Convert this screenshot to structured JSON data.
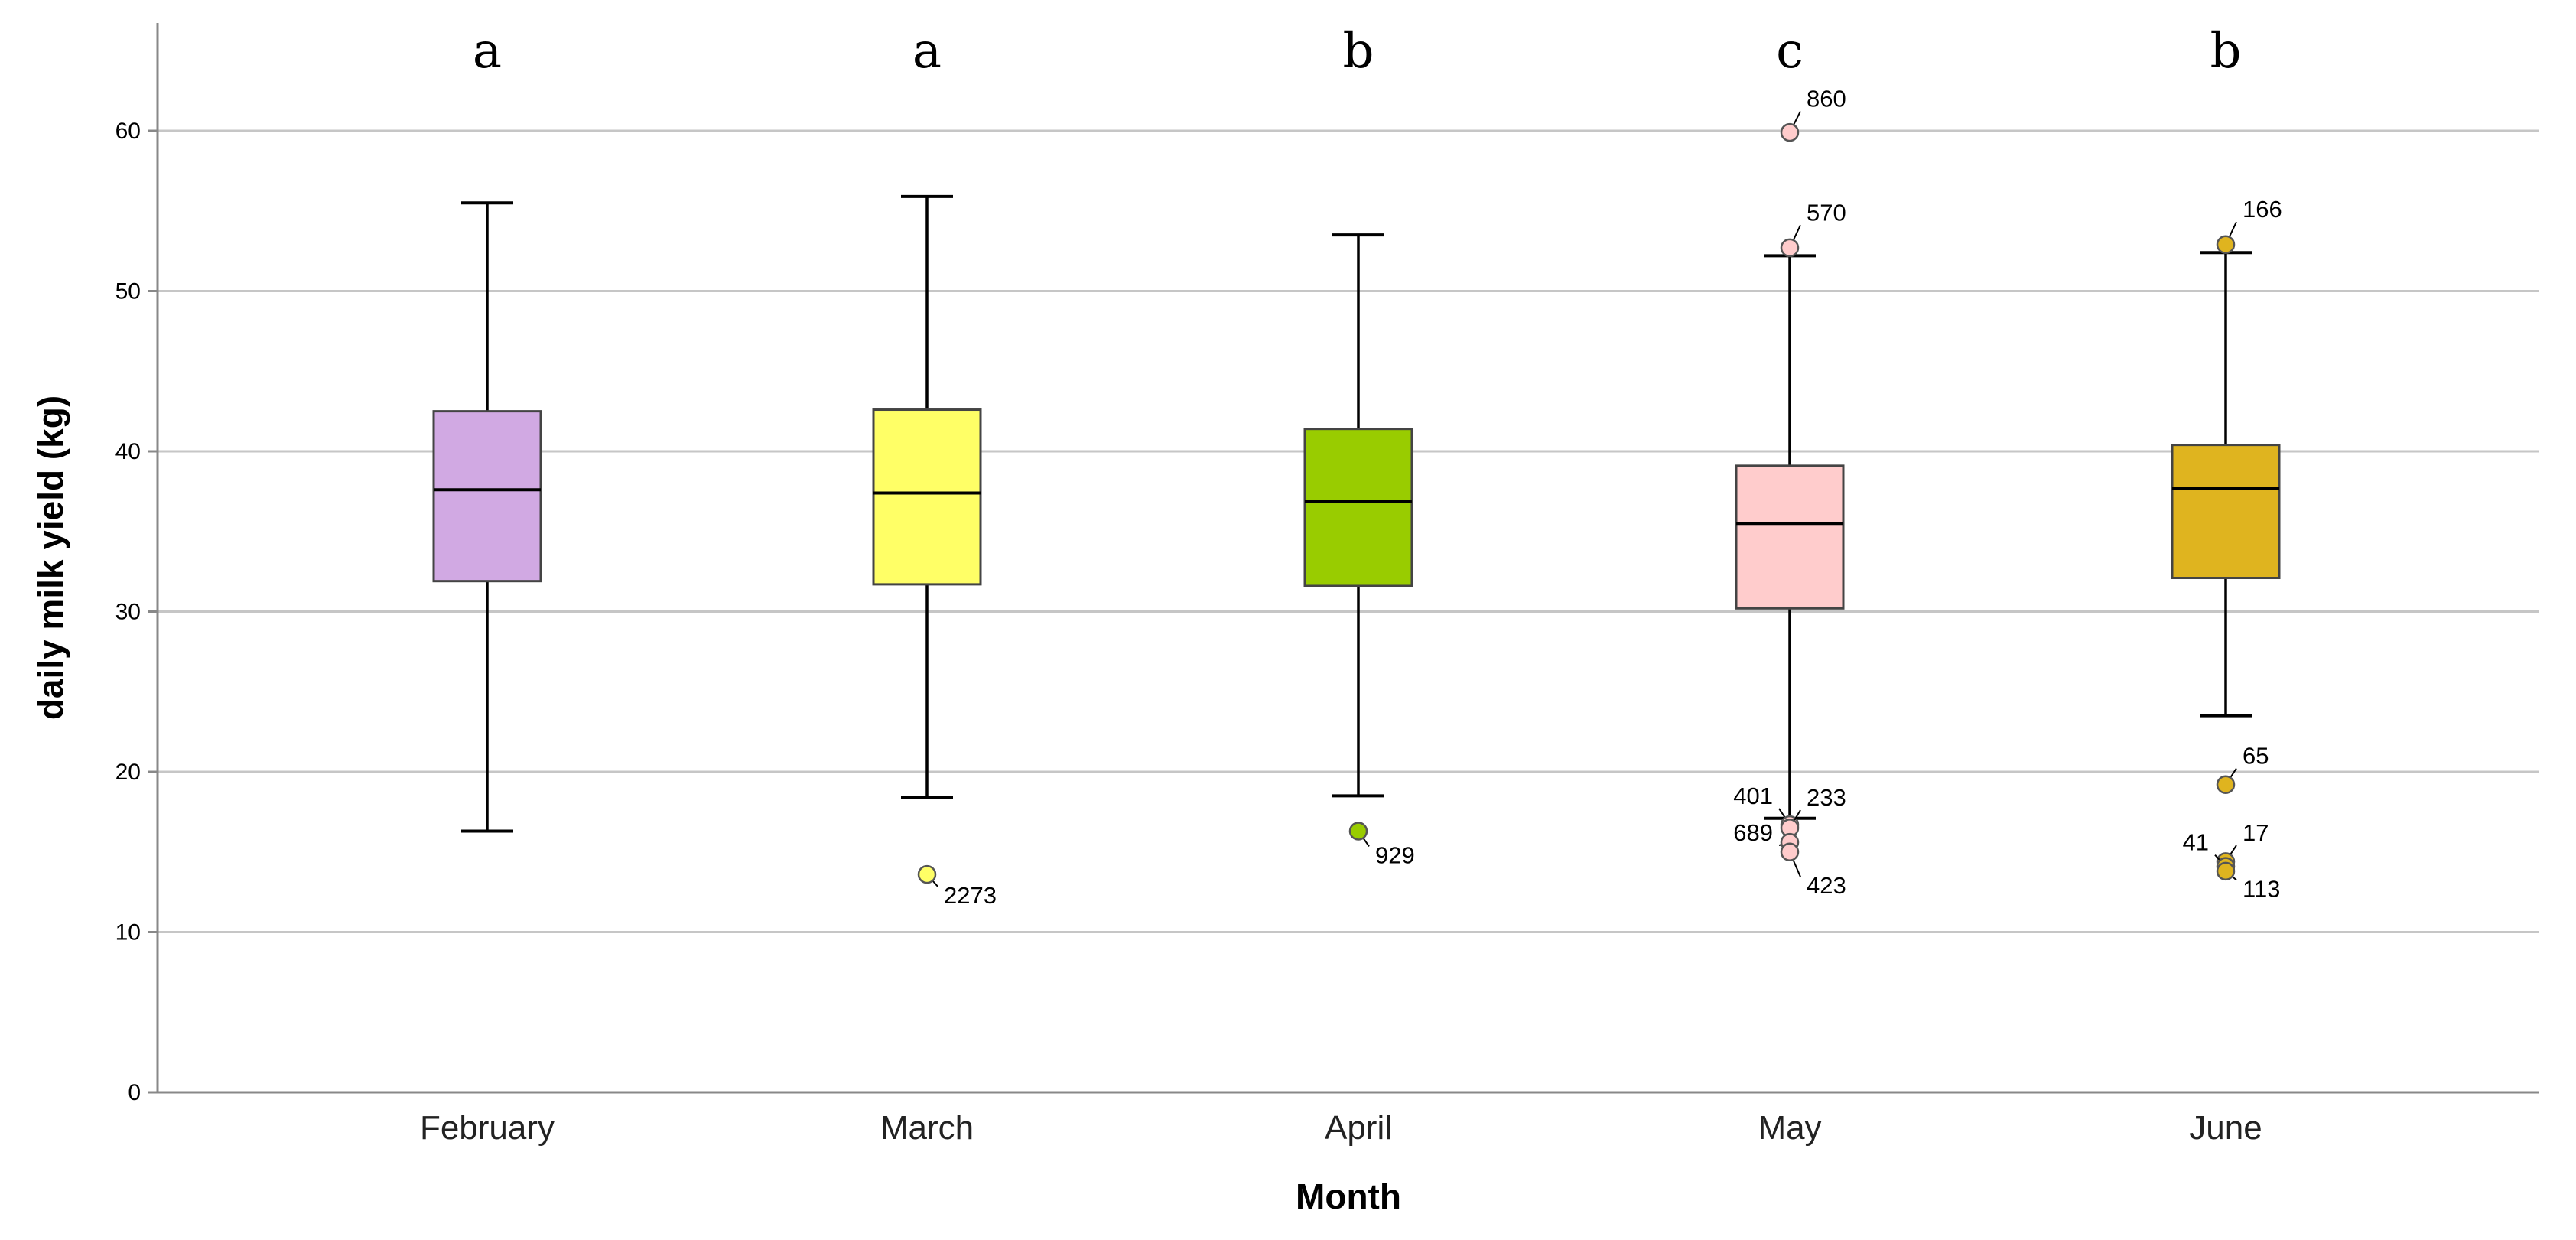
{
  "chart_data": {
    "type": "boxplot",
    "title": "",
    "xlabel": "Month",
    "ylabel": "daily milk yield (kg)",
    "ylim": [
      0,
      66
    ],
    "yticks": [
      0,
      10,
      20,
      30,
      40,
      50,
      60
    ],
    "grid": "horizontal",
    "categories": [
      "February",
      "March",
      "April",
      "May",
      "June"
    ],
    "significance_letters": [
      "a",
      "a",
      "b",
      "c",
      "b"
    ],
    "colors": [
      "#d1a9e3",
      "#ffff66",
      "#99cc00",
      "#ffcccc",
      "#dfb41f"
    ],
    "boxes": [
      {
        "category": "February",
        "whisker_low": 16.3,
        "q1": 31.9,
        "median": 37.6,
        "q3": 42.5,
        "whisker_high": 55.5
      },
      {
        "category": "March",
        "whisker_low": 18.4,
        "q1": 31.7,
        "median": 37.4,
        "q3": 42.6,
        "whisker_high": 55.9
      },
      {
        "category": "April",
        "whisker_low": 18.5,
        "q1": 31.6,
        "median": 36.9,
        "q3": 41.4,
        "whisker_high": 53.5
      },
      {
        "category": "May",
        "whisker_low": 17.1,
        "q1": 30.2,
        "median": 35.5,
        "q3": 39.1,
        "whisker_high": 52.2
      },
      {
        "category": "June",
        "whisker_low": 23.5,
        "q1": 32.1,
        "median": 37.7,
        "q3": 40.4,
        "whisker_high": 52.4
      }
    ],
    "outliers": [
      {
        "category": "March",
        "value": 13.6,
        "label": "2273",
        "label_side": "right",
        "label_dy": -1.8
      },
      {
        "category": "April",
        "value": 16.3,
        "label": "929",
        "label_side": "right",
        "label_dy": -2.0
      },
      {
        "category": "May",
        "value": 59.9,
        "label": "860",
        "label_side": "right",
        "label_dy": 1.6
      },
      {
        "category": "May",
        "value": 52.7,
        "label": "570",
        "label_side": "right",
        "label_dy": 1.7
      },
      {
        "category": "May",
        "value": 16.7,
        "label": "401",
        "label_side": "left",
        "label_dy": 1.3
      },
      {
        "category": "May",
        "value": 16.5,
        "label": "233",
        "label_side": "right",
        "label_dy": 1.4
      },
      {
        "category": "May",
        "value": 15.6,
        "label": "689",
        "label_side": "left",
        "label_dy": 0.1
      },
      {
        "category": "May",
        "value": 15.0,
        "label": "423",
        "label_side": "right",
        "label_dy": -2.6
      },
      {
        "category": "June",
        "value": 52.9,
        "label": "166",
        "label_side": "right",
        "label_dy": 1.7
      },
      {
        "category": "June",
        "value": 19.2,
        "label": "65",
        "label_side": "right",
        "label_dy": 1.3
      },
      {
        "category": "June",
        "value": 14.4,
        "label": "17",
        "label_side": "right",
        "label_dy": 1.3
      },
      {
        "category": "June",
        "value": 14.1,
        "label": "41",
        "label_side": "left",
        "label_dy": 1.0
      },
      {
        "category": "June",
        "value": 13.8,
        "label": "113",
        "label_side": "right",
        "label_dy": -1.6
      }
    ]
  }
}
